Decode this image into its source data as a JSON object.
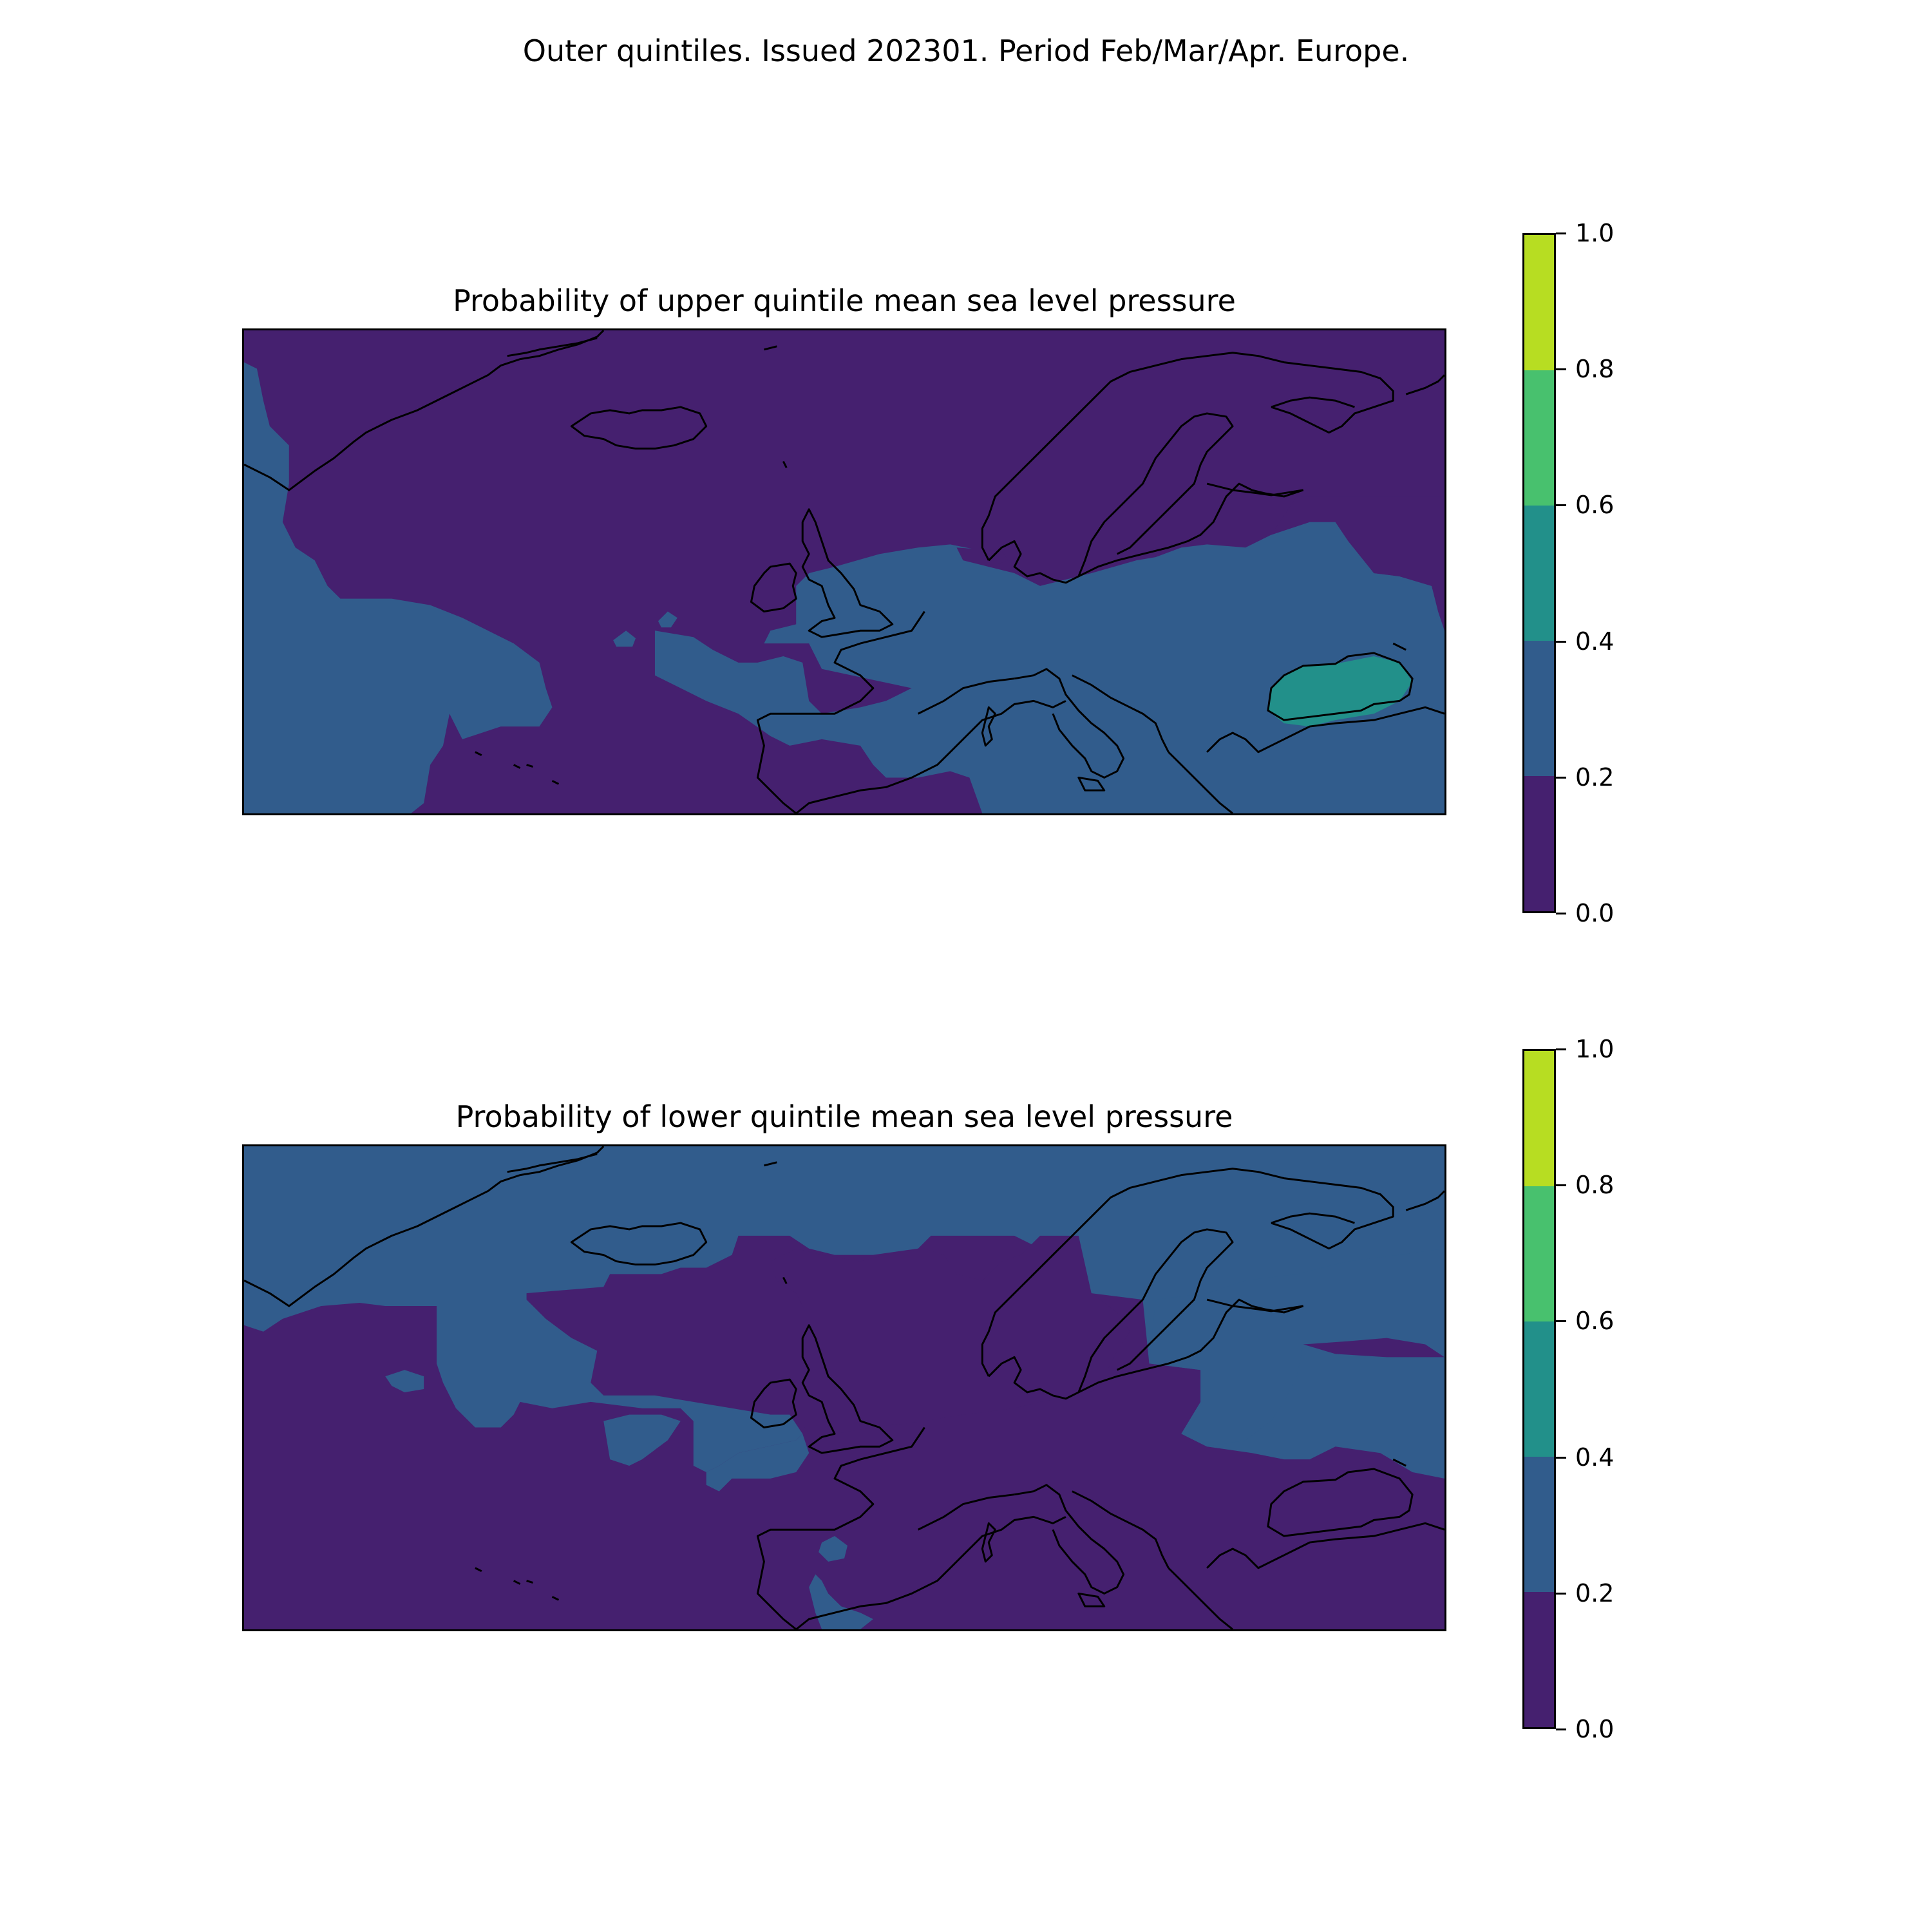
{
  "figure_title": "Outer quintiles. Issued 202301. Period Feb/Mar/Apr. Europe.",
  "colors": {
    "bins": [
      "#45206f",
      "#315c8c",
      "#22908a",
      "#48c16e",
      "#b7dd22"
    ],
    "coastline": "#000000",
    "frame": "#000000"
  },
  "panels": [
    {
      "title": "Probability of upper quintile mean sea level pressure",
      "colorbar": {
        "ticks": [
          "0.0",
          "0.2",
          "0.4",
          "0.6",
          "0.8",
          "1.0"
        ],
        "levels": [
          0.0,
          0.2,
          0.4,
          0.6,
          0.8,
          1.0
        ]
      },
      "background_bin": "0.0-0.2",
      "regions": [
        {
          "bin": "0.2-0.4",
          "area": "far west Atlantic edge and subtropical Atlantic"
        },
        {
          "bin": "0.2-0.4",
          "area": "British Isles, central and southern Europe, eastern Europe"
        },
        {
          "bin": "0.4-0.6",
          "area": "Black Sea"
        }
      ]
    },
    {
      "title": "Probability of lower quintile mean sea level pressure",
      "colorbar": {
        "ticks": [
          "0.0",
          "0.2",
          "0.4",
          "0.6",
          "0.8",
          "1.0"
        ],
        "levels": [
          0.0,
          0.2,
          0.4,
          0.6,
          0.8,
          1.0
        ]
      },
      "background_bin": "0.0-0.2",
      "regions": [
        {
          "bin": "0.2-0.4",
          "area": "Greenland, Iceland, Norwegian Sea, north Atlantic"
        },
        {
          "bin": "0.2-0.4",
          "area": "northern Russia and eastern Europe"
        },
        {
          "bin": "0.2-0.4",
          "area": "small Atlantic patches and western Mediterranean"
        }
      ]
    }
  ]
}
